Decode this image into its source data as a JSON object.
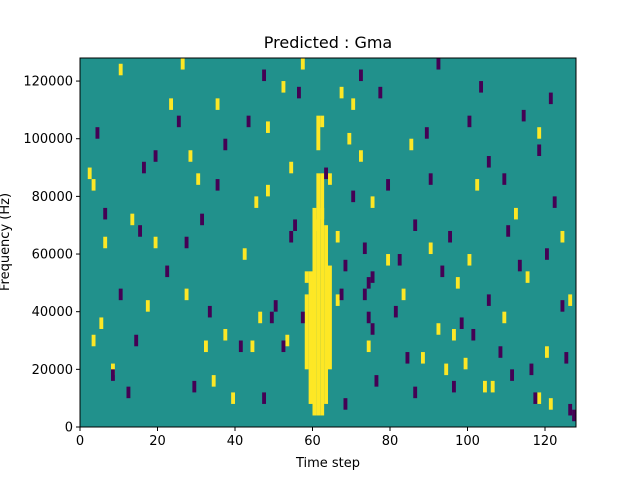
{
  "chart_data": {
    "type": "heatmap",
    "title": "Predicted : Gma",
    "xlabel": "Time step",
    "ylabel": "Frequency (Hz)",
    "xlim": [
      0,
      128
    ],
    "ylim": [
      0,
      128000
    ],
    "x_ticks": [
      0,
      20,
      40,
      60,
      80,
      100,
      120
    ],
    "y_ticks": [
      0,
      20000,
      40000,
      60000,
      80000,
      100000,
      120000
    ],
    "grid": false,
    "legend": "none",
    "cell_size": {
      "time_step": 1,
      "frequency_hz": 4000
    },
    "levels": {
      "low": -1,
      "mid": 0,
      "high": 1
    },
    "colors": {
      "low": "#440154",
      "mid": "#21918c",
      "high": "#fde725"
    },
    "background_level": 0,
    "cells": [
      [
        3,
        28000,
        1
      ],
      [
        32,
        26000,
        1
      ],
      [
        37,
        30000,
        1
      ],
      [
        44,
        26000,
        1
      ],
      [
        60,
        68000,
        1
      ],
      [
        62,
        72000,
        1
      ],
      [
        64,
        84000,
        1
      ],
      [
        66,
        64000,
        1
      ],
      [
        62,
        104000,
        1
      ],
      [
        67,
        114000,
        1
      ],
      [
        70,
        110000,
        1
      ],
      [
        57,
        124000,
        1
      ],
      [
        10,
        122000,
        1
      ],
      [
        28,
        92000,
        1
      ],
      [
        45,
        76000,
        1
      ],
      [
        48,
        80000,
        1
      ],
      [
        79,
        56000,
        1
      ],
      [
        90,
        60000,
        1
      ],
      [
        92,
        32000,
        1
      ],
      [
        94,
        18000,
        1
      ],
      [
        99,
        20000,
        1
      ],
      [
        104,
        12000,
        1
      ],
      [
        106,
        12000,
        1
      ],
      [
        118,
        8000,
        1
      ],
      [
        121,
        6000,
        1
      ],
      [
        2,
        86000,
        1
      ],
      [
        13,
        70000,
        1
      ],
      [
        17,
        40000,
        1
      ],
      [
        23,
        110000,
        1
      ],
      [
        48,
        102000,
        1
      ],
      [
        52,
        116000,
        1
      ],
      [
        72,
        92000,
        1
      ],
      [
        83,
        44000,
        1
      ],
      [
        96,
        30000,
        1
      ],
      [
        112,
        72000,
        1
      ],
      [
        118,
        100000,
        1
      ],
      [
        126,
        42000,
        1
      ],
      [
        8,
        18000,
        1
      ],
      [
        27,
        44000,
        1
      ],
      [
        42,
        58000,
        1
      ],
      [
        54,
        88000,
        1
      ],
      [
        75,
        76000,
        1
      ],
      [
        100,
        56000,
        1
      ],
      [
        109,
        36000,
        1
      ],
      [
        124,
        64000,
        1
      ],
      [
        6,
        62000,
        1
      ],
      [
        34,
        14000,
        1
      ],
      [
        39,
        8000,
        1
      ],
      [
        46,
        36000,
        1
      ],
      [
        66,
        42000,
        1
      ],
      [
        85,
        96000,
        1
      ],
      [
        97,
        48000,
        1
      ],
      [
        115,
        50000,
        1
      ],
      [
        5,
        34000,
        1
      ],
      [
        26,
        124000,
        1
      ],
      [
        35,
        110000,
        1
      ],
      [
        53,
        28000,
        1
      ],
      [
        74,
        26000,
        1
      ],
      [
        88,
        22000,
        1
      ],
      [
        102,
        82000,
        1
      ],
      [
        120,
        24000,
        1
      ],
      [
        3,
        82000,
        1
      ],
      [
        19,
        62000,
        1
      ],
      [
        30,
        84000,
        1
      ],
      [
        58,
        50000,
        1
      ],
      [
        69,
        98000,
        1
      ],
      [
        8,
        16000,
        -1
      ],
      [
        15,
        66000,
        -1
      ],
      [
        16,
        88000,
        -1
      ],
      [
        27,
        62000,
        -1
      ],
      [
        33,
        38000,
        -1
      ],
      [
        35,
        82000,
        -1
      ],
      [
        47,
        120000,
        -1
      ],
      [
        49,
        36000,
        -1
      ],
      [
        52,
        26000,
        -1
      ],
      [
        55,
        68000,
        -1
      ],
      [
        57,
        36000,
        -1
      ],
      [
        68,
        54000,
        -1
      ],
      [
        70,
        78000,
        -1
      ],
      [
        72,
        120000,
        -1
      ],
      [
        73,
        60000,
        -1
      ],
      [
        74,
        48000,
        -1
      ],
      [
        75,
        50000,
        -1
      ],
      [
        73,
        44000,
        -1
      ],
      [
        74,
        36000,
        -1
      ],
      [
        75,
        32000,
        -1
      ],
      [
        77,
        114000,
        -1
      ],
      [
        81,
        38000,
        -1
      ],
      [
        84,
        22000,
        -1
      ],
      [
        86,
        10000,
        -1
      ],
      [
        90,
        84000,
        -1
      ],
      [
        93,
        52000,
        -1
      ],
      [
        95,
        64000,
        -1
      ],
      [
        98,
        34000,
        -1
      ],
      [
        101,
        30000,
        -1
      ],
      [
        103,
        116000,
        -1
      ],
      [
        105,
        90000,
        -1
      ],
      [
        108,
        24000,
        -1
      ],
      [
        110,
        66000,
        -1
      ],
      [
        113,
        54000,
        -1
      ],
      [
        116,
        18000,
        -1
      ],
      [
        118,
        94000,
        -1
      ],
      [
        120,
        58000,
        -1
      ],
      [
        122,
        76000,
        -1
      ],
      [
        124,
        40000,
        -1
      ],
      [
        126,
        4000,
        -1
      ],
      [
        127,
        2000,
        -1
      ],
      [
        10,
        44000,
        -1
      ],
      [
        14,
        28000,
        -1
      ],
      [
        19,
        92000,
        -1
      ],
      [
        22,
        52000,
        -1
      ],
      [
        25,
        104000,
        -1
      ],
      [
        29,
        12000,
        -1
      ],
      [
        31,
        70000,
        -1
      ],
      [
        37,
        96000,
        -1
      ],
      [
        41,
        26000,
        -1
      ],
      [
        43,
        104000,
        -1
      ],
      [
        47,
        8000,
        -1
      ],
      [
        50,
        40000,
        -1
      ],
      [
        54,
        64000,
        -1
      ],
      [
        56,
        114000,
        -1
      ],
      [
        63,
        86000,
        -1
      ],
      [
        67,
        44000,
        -1
      ],
      [
        68,
        6000,
        -1
      ],
      [
        76,
        14000,
        -1
      ],
      [
        79,
        82000,
        -1
      ],
      [
        82,
        56000,
        -1
      ],
      [
        86,
        68000,
        -1
      ],
      [
        89,
        100000,
        -1
      ],
      [
        92,
        124000,
        -1
      ],
      [
        96,
        12000,
        -1
      ],
      [
        100,
        104000,
        -1
      ],
      [
        105,
        42000,
        -1
      ],
      [
        109,
        84000,
        -1
      ],
      [
        111,
        16000,
        -1
      ],
      [
        114,
        106000,
        -1
      ],
      [
        117,
        8000,
        -1
      ],
      [
        121,
        112000,
        -1
      ],
      [
        125,
        22000,
        -1
      ],
      [
        12,
        10000,
        -1
      ],
      [
        6,
        72000,
        -1
      ],
      [
        4,
        100000,
        -1
      ]
    ],
    "columns": [
      {
        "x": 61,
        "level": 1,
        "ranges": [
          [
            4000,
            88000
          ],
          [
            96000,
            108000
          ]
        ]
      },
      {
        "x": 60,
        "level": 1,
        "ranges": [
          [
            4000,
            76000
          ]
        ]
      },
      {
        "x": 62,
        "level": 1,
        "ranges": [
          [
            4000,
            88000
          ]
        ]
      },
      {
        "x": 59,
        "level": 1,
        "ranges": [
          [
            8000,
            54000
          ]
        ]
      },
      {
        "x": 63,
        "level": 1,
        "ranges": [
          [
            8000,
            70000
          ]
        ]
      },
      {
        "x": 64,
        "level": 1,
        "ranges": [
          [
            20000,
            56000
          ]
        ]
      },
      {
        "x": 58,
        "level": 1,
        "ranges": [
          [
            20000,
            46000
          ]
        ]
      }
    ]
  }
}
